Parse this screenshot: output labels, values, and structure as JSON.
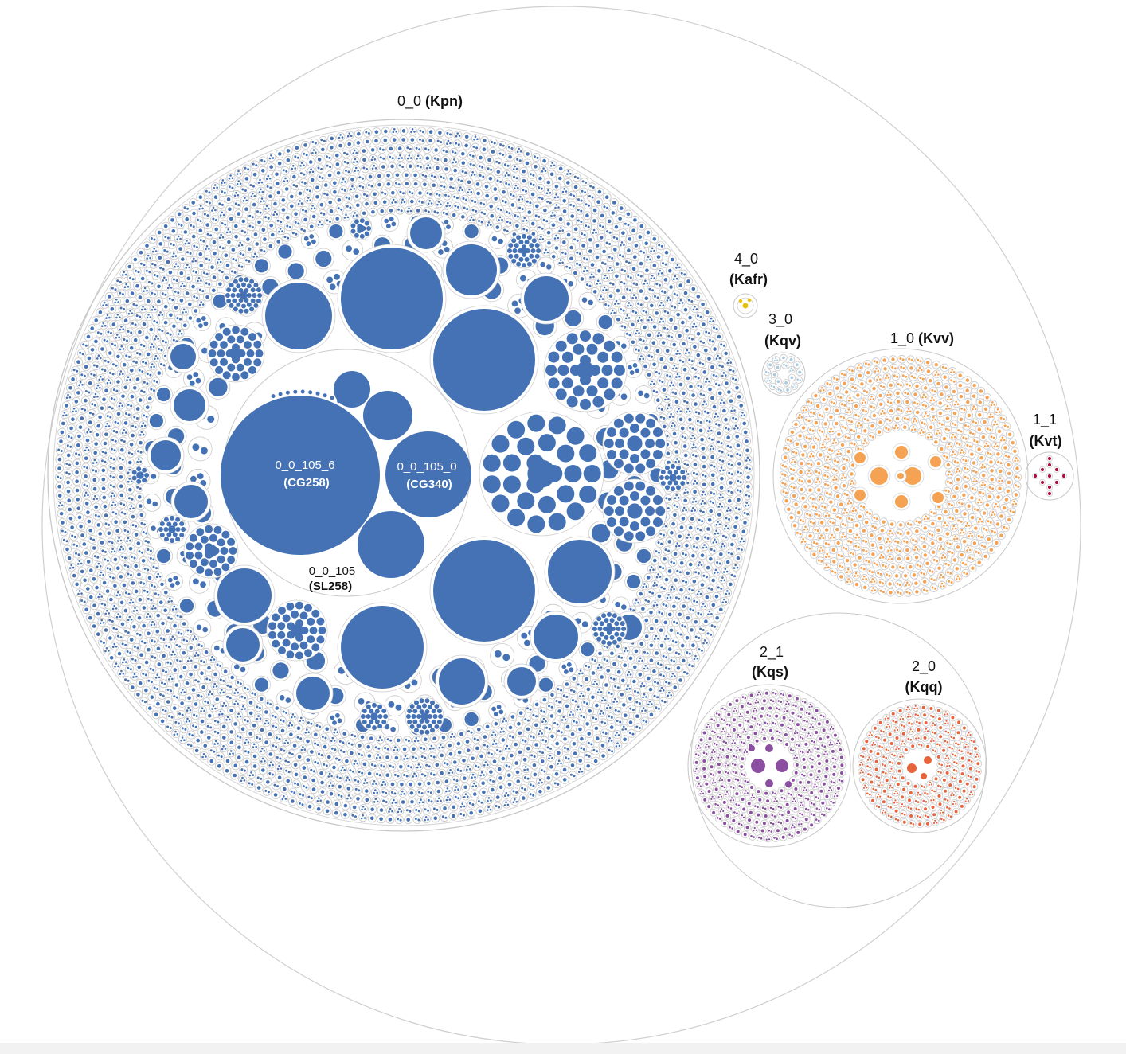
{
  "title": "",
  "colors": {
    "kpn": "#4472b4",
    "kvv": "#f5a253",
    "kqs": "#8b4ea0",
    "kqq": "#e8643c",
    "kqv": "#a9cbe0",
    "kafr": "#e8c20a",
    "kvt": "#a8123e",
    "outline": "#c8c8c8"
  },
  "nodes": [
    {
      "id": "kpn",
      "code": "0_0",
      "name": "(Kpn)",
      "color": "kpn"
    },
    {
      "id": "kafr",
      "code": "4_0",
      "name": "(Kafr)",
      "color": "kafr"
    },
    {
      "id": "kqv",
      "code": "3_0",
      "name": "(Kqv)",
      "color": "kqv"
    },
    {
      "id": "kvv",
      "code": "1_0",
      "name": "(Kvv)",
      "color": "kvv"
    },
    {
      "id": "kvt",
      "code": "1_1",
      "name": "(Kvt)",
      "color": "kvt"
    },
    {
      "id": "kqs",
      "code": "2_1",
      "name": "(Kqs)",
      "color": "kqs"
    },
    {
      "id": "kqq",
      "code": "2_0",
      "name": "(Kqq)",
      "color": "kqq"
    }
  ],
  "sublineage": {
    "code": "0_0_105",
    "name": "(SL258)"
  },
  "clonal_groups": [
    {
      "code": "0_0_105_6",
      "name": "(CG258)"
    },
    {
      "code": "0_0_105_0",
      "name": "(CG340)"
    }
  ]
}
